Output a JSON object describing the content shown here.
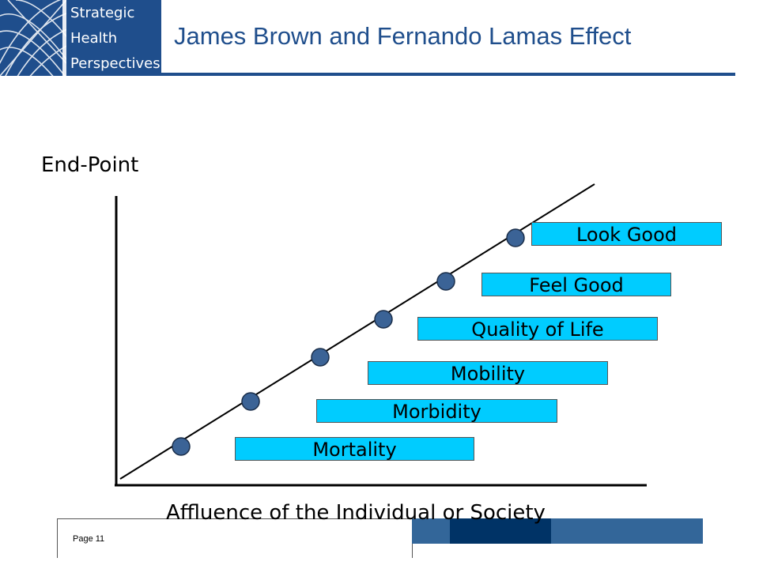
{
  "logo": {
    "lines": [
      "Strategic",
      "Health",
      "Perspectives"
    ],
    "icon": "globe-lattice-icon"
  },
  "title": "James Brown and Fernando Lamas Effect",
  "diagram": {
    "y_axis_label": "End-Point",
    "x_axis_label": "Affluence of the Individual or Society",
    "stages": [
      "Mortality",
      "Morbidity",
      "Mobility",
      "Quality of Life",
      "Feel Good",
      "Look Good"
    ]
  },
  "footer": {
    "page": "Page 11"
  },
  "colors": {
    "brand_blue": "#1f4e8c",
    "box_fill": "#00ccff",
    "dot_fill": "#3b6396",
    "footer_dark": "#003366",
    "footer_mid": "#336699"
  }
}
